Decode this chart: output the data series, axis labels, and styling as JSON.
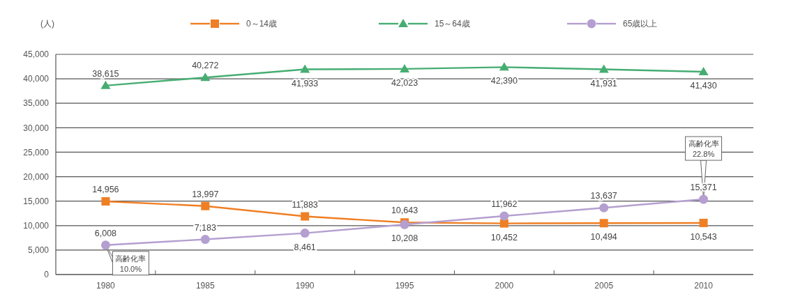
{
  "chart_data": {
    "type": "line",
    "ylabel": "(人)",
    "categories": [
      "1980",
      "1985",
      "1990",
      "1995",
      "2000",
      "2005",
      "2010"
    ],
    "series": [
      {
        "name": "0～14歳",
        "color": "#ef7f24",
        "marker": "square",
        "values": [
          14956,
          13997,
          11883,
          10643,
          10452,
          10494,
          10543
        ],
        "value_labels": [
          "14,956",
          "13,997",
          "11,883",
          "10,643",
          "10,452",
          "10,494",
          "10,543"
        ]
      },
      {
        "name": "15～64歳",
        "color": "#46ad72",
        "marker": "triangle",
        "values": [
          38615,
          40272,
          41933,
          42023,
          42390,
          41931,
          41430
        ],
        "value_labels": [
          "38,615",
          "40,272",
          "41,933",
          "42,023",
          "42,390",
          "41,931",
          "41,430"
        ]
      },
      {
        "name": "65歳以上",
        "color": "#b49fd0",
        "marker": "circle",
        "values": [
          6008,
          7183,
          8461,
          10208,
          11962,
          13637,
          15371
        ],
        "value_labels": [
          "6,008",
          "7,183",
          "8,461",
          "10,208",
          "11,962",
          "13,637",
          "15,371"
        ]
      }
    ],
    "ylim": [
      0,
      45000
    ],
    "yticks": [
      0,
      {
        "value": 5000,
        "label": "5,000"
      },
      {
        "value": 10000,
        "label": "10,000"
      },
      {
        "value": 15000,
        "label": "15,000"
      },
      {
        "value": 20000,
        "label": "20,000"
      },
      {
        "value": 25000,
        "label": "25,000"
      },
      {
        "value": 30000,
        "label": "30,000"
      },
      {
        "value": 35000,
        "label": "35,000"
      },
      {
        "value": 40000,
        "label": "40,000"
      },
      {
        "value": 45000,
        "label": "45,000"
      }
    ],
    "grid": "y",
    "legend": "top",
    "annotations": [
      {
        "text": "高齢化率 10.0%",
        "x": "1980",
        "y": 6008
      },
      {
        "text": "高齢化率 22.8%",
        "x": "2010",
        "y": 15371
      }
    ]
  }
}
